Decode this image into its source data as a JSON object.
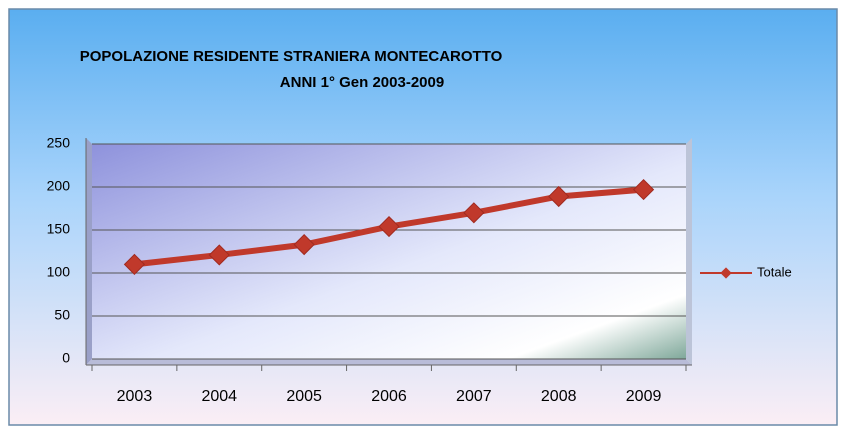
{
  "chart_data": {
    "type": "line",
    "title": "POPOLAZIONE RESIDENTE STRANIERA MONTECAROTTO",
    "subtitle": "ANNI  1° Gen 2003-2009",
    "categories": [
      "2003",
      "2004",
      "2005",
      "2006",
      "2007",
      "2008",
      "2009"
    ],
    "series": [
      {
        "name": "Totale",
        "color": "#c0392b",
        "values": [
          110,
          121,
          133,
          154,
          170,
          189,
          197
        ]
      }
    ],
    "ylim": [
      0,
      250
    ],
    "yticks": [
      0,
      50,
      100,
      150,
      200,
      250
    ],
    "grid": true,
    "legend": "right"
  }
}
